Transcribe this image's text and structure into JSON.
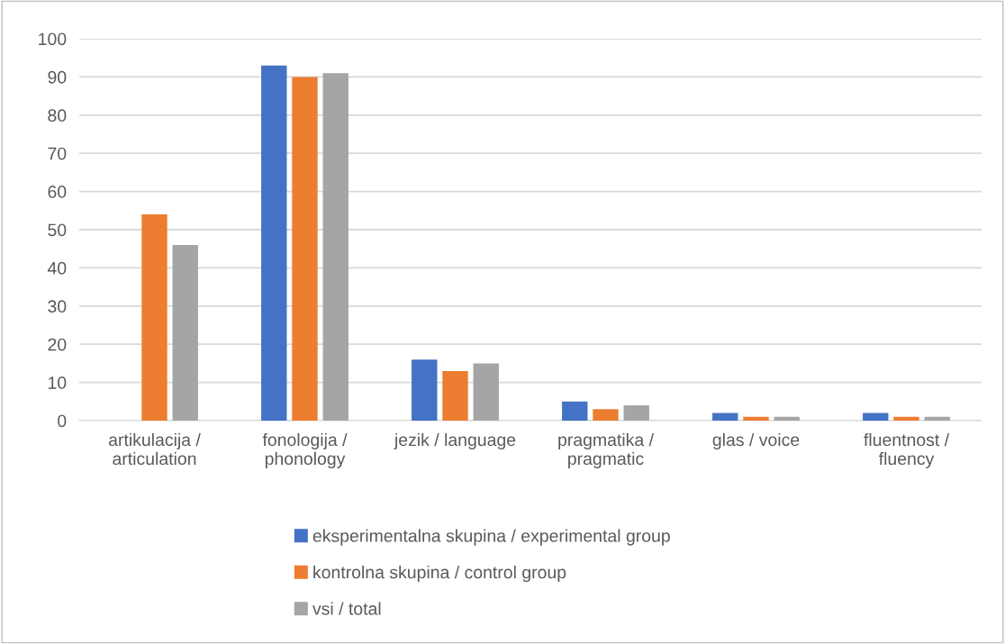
{
  "chart_data": {
    "type": "bar",
    "categories": [
      "artikulacija /\narticulation",
      "fonologija /\nphonology",
      "jezik / language",
      "pragmatika /\npragmatic",
      "glas / voice",
      "fluentnost /\nfluency"
    ],
    "series": [
      {
        "name": "eksperimentalna skupina / experimental group",
        "color": "#4472c4",
        "values": [
          0,
          93,
          16,
          5,
          2,
          2
        ]
      },
      {
        "name": "kontrolna skupina / control group",
        "color": "#ed7d31",
        "values": [
          54,
          90,
          13,
          3,
          1,
          1
        ]
      },
      {
        "name": "vsi / total",
        "color": "#a5a5a5",
        "values": [
          46,
          91,
          15,
          4,
          1,
          1
        ]
      }
    ],
    "ylim": [
      0,
      100
    ],
    "yticks": [
      0,
      10,
      20,
      30,
      40,
      50,
      60,
      70,
      80,
      90,
      100
    ],
    "grid": "y",
    "legend": "bottom"
  }
}
